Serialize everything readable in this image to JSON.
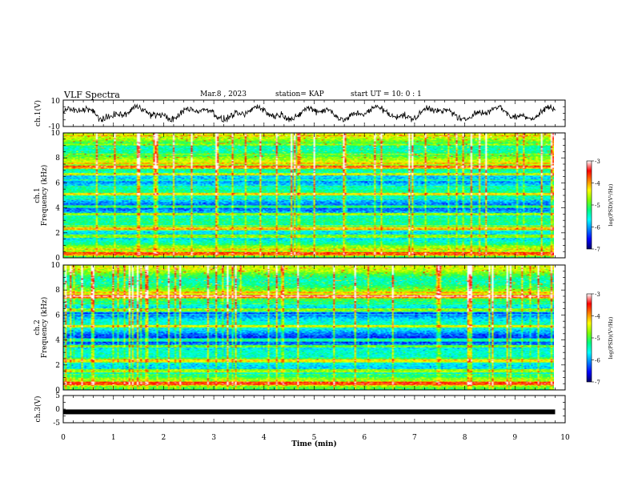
{
  "header": {
    "title": "VLF Spectra",
    "date": "Mar.8 , 2023",
    "station": "station= KAP",
    "start_ut": "start UT = 10: 0 : 1"
  },
  "colors": {
    "colormap": [
      "#000066",
      "#0000ff",
      "#0080ff",
      "#00ffff",
      "#00ff80",
      "#80ff00",
      "#ffff00",
      "#ff8000",
      "#ff0000",
      "#ffffff"
    ],
    "trace": "#000000"
  },
  "chart_data": [
    {
      "type": "line",
      "panel": "ch1-waveform",
      "ylabel": "ch.1(V)",
      "ylim": [
        -10,
        10
      ],
      "yticks": [
        "10",
        "-10"
      ],
      "xlim": [
        0,
        10
      ],
      "approx_y_range": [
        -6,
        6
      ]
    },
    {
      "type": "heatmap",
      "panel": "ch1-spectrogram",
      "ylabel_top": "ch.1",
      "ylabel": "Frequency (kHz)",
      "ylim": [
        0,
        10
      ],
      "yticks": [
        "0",
        "2",
        "4",
        "6",
        "8",
        "10"
      ],
      "xlim": [
        0,
        9.8
      ],
      "colorbar": {
        "label": "log(PSD)(V²/Hz)",
        "range": [
          -7,
          -3
        ],
        "ticks": [
          "-3",
          "-4",
          "-5",
          "-6",
          "-7"
        ]
      },
      "bright_bands_khz": [
        0.3,
        1.7,
        2.3,
        3.5,
        4.1,
        5.1,
        6.7,
        7.3
      ]
    },
    {
      "type": "heatmap",
      "panel": "ch2-spectrogram",
      "ylabel_top": "ch.2",
      "ylabel": "Frequency (kHz)",
      "ylim": [
        0,
        10
      ],
      "yticks": [
        "0",
        "2",
        "4",
        "6",
        "8",
        "10"
      ],
      "xlim": [
        0,
        9.8
      ],
      "colorbar": {
        "label": "log(PSD)(V²/Hz)",
        "range": [
          -7,
          -3
        ],
        "ticks": [
          "-3",
          "-4",
          "-5",
          "-6",
          "-7"
        ]
      },
      "bright_bands_khz": [
        0.5,
        1.5,
        2.3,
        3.5,
        4.0,
        5.1,
        6.4,
        7.5
      ]
    },
    {
      "type": "line",
      "panel": "ch3-waveform",
      "ylabel": "ch.3(V)",
      "ylim": [
        -5,
        5
      ],
      "yticks": [
        "5",
        "0",
        "-5"
      ],
      "xlim": [
        0,
        9.8
      ],
      "y_value": -1.0
    }
  ],
  "xaxis": {
    "label": "Time (min)",
    "ticks": [
      "0",
      "1",
      "2",
      "3",
      "4",
      "5",
      "6",
      "7",
      "8",
      "9",
      "10"
    ]
  }
}
